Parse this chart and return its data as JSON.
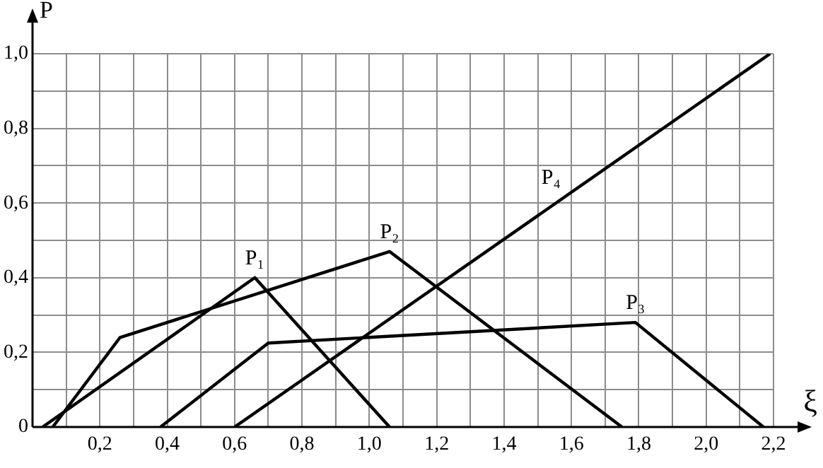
{
  "chart_data": {
    "type": "line",
    "xlabel": "ξ",
    "ylabel": "P",
    "xlim": [
      0,
      2.2
    ],
    "ylim": [
      0,
      1.0
    ],
    "xticks": [
      {
        "value": 0.1,
        "label": null
      },
      {
        "value": 0.2,
        "label": "0,2"
      },
      {
        "value": 0.3,
        "label": null
      },
      {
        "value": 0.4,
        "label": "0,4"
      },
      {
        "value": 0.5,
        "label": null
      },
      {
        "value": 0.6,
        "label": "0,6"
      },
      {
        "value": 0.7,
        "label": null
      },
      {
        "value": 0.8,
        "label": "0,8"
      },
      {
        "value": 0.9,
        "label": null
      },
      {
        "value": 1.0,
        "label": "1,0"
      },
      {
        "value": 1.1,
        "label": null
      },
      {
        "value": 1.2,
        "label": "1,2"
      },
      {
        "value": 1.3,
        "label": null
      },
      {
        "value": 1.4,
        "label": "1,4"
      },
      {
        "value": 1.5,
        "label": null
      },
      {
        "value": 1.6,
        "label": "1,6"
      },
      {
        "value": 1.7,
        "label": null
      },
      {
        "value": 1.8,
        "label": "1,8"
      },
      {
        "value": 1.9,
        "label": null
      },
      {
        "value": 2.0,
        "label": "2,0"
      },
      {
        "value": 2.1,
        "label": null
      },
      {
        "value": 2.2,
        "label": "2,2"
      }
    ],
    "yticks": [
      0,
      {
        "value": 0.1,
        "label": null
      },
      {
        "value": 0.2,
        "label": "0,2"
      },
      {
        "value": 0.3,
        "label": null
      },
      {
        "value": 0.4,
        "label": "0,4"
      },
      {
        "value": 0.5,
        "label": null
      },
      {
        "value": 0.6,
        "label": "0,6"
      },
      {
        "value": 0.7,
        "label": null
      },
      {
        "value": 0.8,
        "label": "0,8"
      },
      {
        "value": 0.9,
        "label": null
      },
      {
        "value": 1.0,
        "label": "1,0"
      }
    ],
    "grid": true,
    "legend": false,
    "marker": "none",
    "line_style": "solid",
    "series": [
      {
        "name": "P₁",
        "color": "#000000",
        "x": [
          0.03,
          0.66,
          1.06
        ],
        "values": [
          0,
          0.4,
          0
        ]
      },
      {
        "name": "P₂",
        "color": "#000000",
        "x": [
          0.06,
          0.26,
          1.06,
          1.75
        ],
        "values": [
          0,
          0.24,
          0.47,
          0
        ]
      },
      {
        "name": "P₃",
        "color": "#000000",
        "x": [
          0.38,
          0.7,
          1.79,
          2.17
        ],
        "values": [
          0,
          0.225,
          0.28,
          0
        ]
      },
      {
        "name": "P₄",
        "color": "#000000",
        "x": [
          0.6,
          2.19
        ],
        "values": [
          0,
          1.0
        ]
      }
    ]
  }
}
